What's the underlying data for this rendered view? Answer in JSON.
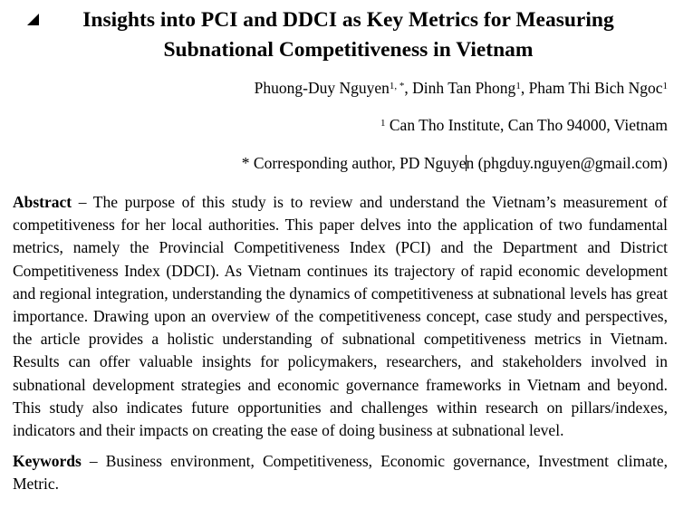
{
  "paper": {
    "title_line1": "Insights into PCI and DDCI as Key Metrics for Measuring",
    "title_line2": "Subnational Competitiveness in Vietnam",
    "authors": [
      {
        "name": "Phuong-Duy Nguyen",
        "sup": "1, *",
        "sep": ", "
      },
      {
        "name": "Dinh Tan Phong",
        "sup": "1",
        "sep": ", "
      },
      {
        "name": "Pham Thi Bich Ngoc",
        "sup": "1",
        "sep": ""
      }
    ],
    "affiliation": {
      "sup": "1",
      "text": " Can Tho Institute, Can Tho 94000, Vietnam"
    },
    "corresponding": {
      "before_caret": "* Corresponding author, PD Nguye",
      "after_caret": "n (phgduy.nguyen@gmail.com)"
    },
    "abstract": {
      "label": "Abstract",
      "text": " – The purpose of this study is to review and understand the Vietnam’s measurement of competitiveness for her local authorities. This paper delves into the application of two fundamental metrics, namely the Provincial Competitiveness Index (PCI) and the Department and District Competitiveness Index (DDCI). As Vietnam continues its trajectory of rapid economic development and regional integration, understanding the dynamics of competitiveness at subnational levels has great importance. Drawing upon an overview of the competitiveness concept, case study and perspectives, the article provides a holistic understanding of subnational competitiveness metrics in Vietnam. Results can offer valuable insights for policymakers, researchers, and stakeholders involved in subnational development strategies and economic governance frameworks in Vietnam and beyond. This study also indicates future opportunities and challenges within research on pillars/indexes, indicators and their impacts on creating the ease of doing business at subnational level."
    },
    "keywords": {
      "label": "Keywords",
      "text": " – Business environment, Competitiveness, Economic governance, Investment climate, Metric."
    }
  }
}
